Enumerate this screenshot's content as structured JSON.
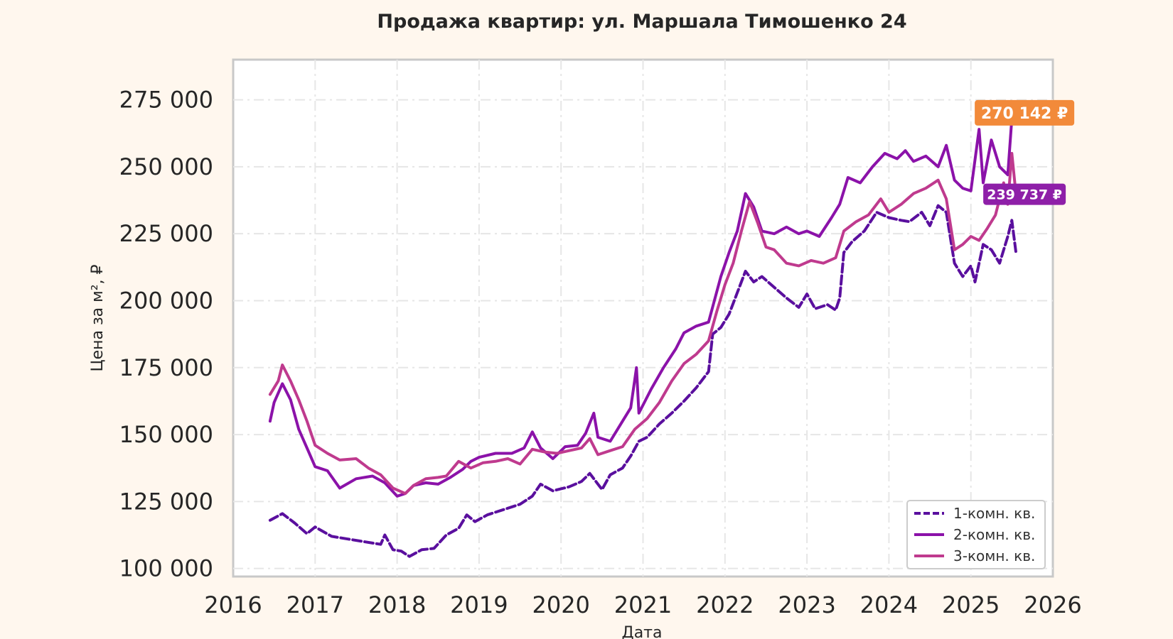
{
  "chart_data": {
    "type": "line",
    "title": "Продажа квартир: ул. Маршала Тимошенко 24",
    "xlabel": "Дата",
    "ylabel": "Цена за м², ₽",
    "xlim": [
      2016,
      2026
    ],
    "ylim": [
      97000,
      290000
    ],
    "x_ticks": [
      2016,
      2017,
      2018,
      2019,
      2020,
      2021,
      2022,
      2023,
      2024,
      2025,
      2026
    ],
    "x_tick_labels": [
      "2016",
      "2017",
      "2018",
      "2019",
      "2020",
      "2021",
      "2022",
      "2023",
      "2024",
      "2025",
      "2026"
    ],
    "y_ticks": [
      100000,
      125000,
      150000,
      175000,
      200000,
      225000,
      250000,
      275000
    ],
    "y_tick_labels": [
      "100 000",
      "125 000",
      "150 000",
      "175 000",
      "200 000",
      "225 000",
      "250 000",
      "275 000"
    ],
    "grid": true,
    "legend_position": "bottom-right",
    "series": [
      {
        "name": "1-комн. кв.",
        "color": "#5a0f9e",
        "style": "dashed",
        "points": [
          [
            2016.45,
            118000
          ],
          [
            2016.6,
            120500
          ],
          [
            2016.75,
            117000
          ],
          [
            2016.9,
            113000
          ],
          [
            2017.0,
            115500
          ],
          [
            2017.2,
            112000
          ],
          [
            2017.4,
            111000
          ],
          [
            2017.6,
            110000
          ],
          [
            2017.8,
            109000
          ],
          [
            2017.85,
            112500
          ],
          [
            2017.95,
            107000
          ],
          [
            2018.05,
            106500
          ],
          [
            2018.15,
            104500
          ],
          [
            2018.3,
            107000
          ],
          [
            2018.45,
            107500
          ],
          [
            2018.6,
            112500
          ],
          [
            2018.75,
            115000
          ],
          [
            2018.85,
            120000
          ],
          [
            2018.95,
            117500
          ],
          [
            2019.1,
            120000
          ],
          [
            2019.3,
            122000
          ],
          [
            2019.5,
            124000
          ],
          [
            2019.65,
            127000
          ],
          [
            2019.75,
            131500
          ],
          [
            2019.9,
            129000
          ],
          [
            2020.1,
            130500
          ],
          [
            2020.25,
            132500
          ],
          [
            2020.35,
            135500
          ],
          [
            2020.45,
            131500
          ],
          [
            2020.5,
            129500
          ],
          [
            2020.6,
            135000
          ],
          [
            2020.75,
            137500
          ],
          [
            2020.85,
            142000
          ],
          [
            2020.95,
            147500
          ],
          [
            2021.05,
            149000
          ],
          [
            2021.2,
            154000
          ],
          [
            2021.35,
            158000
          ],
          [
            2021.5,
            162500
          ],
          [
            2021.65,
            167500
          ],
          [
            2021.8,
            173500
          ],
          [
            2021.85,
            187500
          ],
          [
            2021.95,
            190000
          ],
          [
            2022.05,
            195000
          ],
          [
            2022.15,
            203000
          ],
          [
            2022.25,
            211000
          ],
          [
            2022.35,
            207000
          ],
          [
            2022.45,
            209000
          ],
          [
            2022.6,
            205000
          ],
          [
            2022.75,
            201000
          ],
          [
            2022.9,
            197500
          ],
          [
            2023.0,
            202500
          ],
          [
            2023.1,
            197000
          ],
          [
            2023.25,
            198500
          ],
          [
            2023.35,
            196500
          ],
          [
            2023.4,
            201000
          ],
          [
            2023.45,
            218000
          ],
          [
            2023.55,
            222000
          ],
          [
            2023.7,
            226000
          ],
          [
            2023.85,
            233000
          ],
          [
            2024.0,
            231000
          ],
          [
            2024.15,
            230000
          ],
          [
            2024.25,
            229500
          ],
          [
            2024.4,
            233000
          ],
          [
            2024.5,
            228000
          ],
          [
            2024.6,
            235500
          ],
          [
            2024.7,
            233000
          ],
          [
            2024.8,
            214000
          ],
          [
            2024.9,
            209000
          ],
          [
            2025.0,
            213000
          ],
          [
            2025.05,
            207000
          ],
          [
            2025.15,
            221000
          ],
          [
            2025.25,
            219000
          ],
          [
            2025.35,
            214000
          ],
          [
            2025.45,
            224000
          ],
          [
            2025.5,
            230000
          ],
          [
            2025.55,
            218000
          ]
        ]
      },
      {
        "name": "2-комн. кв.",
        "color": "#8b12a9",
        "style": "solid",
        "points": [
          [
            2016.45,
            155000
          ],
          [
            2016.5,
            162000
          ],
          [
            2016.6,
            169000
          ],
          [
            2016.7,
            163000
          ],
          [
            2016.8,
            152000
          ],
          [
            2016.9,
            145000
          ],
          [
            2017.0,
            138000
          ],
          [
            2017.15,
            136500
          ],
          [
            2017.3,
            130000
          ],
          [
            2017.5,
            133500
          ],
          [
            2017.7,
            134500
          ],
          [
            2017.85,
            132000
          ],
          [
            2018.0,
            127000
          ],
          [
            2018.1,
            128000
          ],
          [
            2018.2,
            131000
          ],
          [
            2018.35,
            132000
          ],
          [
            2018.5,
            131500
          ],
          [
            2018.65,
            134000
          ],
          [
            2018.8,
            137000
          ],
          [
            2018.9,
            140000
          ],
          [
            2019.0,
            141500
          ],
          [
            2019.2,
            143000
          ],
          [
            2019.4,
            143000
          ],
          [
            2019.55,
            145000
          ],
          [
            2019.65,
            151000
          ],
          [
            2019.75,
            145000
          ],
          [
            2019.9,
            141000
          ],
          [
            2020.05,
            145500
          ],
          [
            2020.2,
            146000
          ],
          [
            2020.3,
            150500
          ],
          [
            2020.4,
            158000
          ],
          [
            2020.45,
            149000
          ],
          [
            2020.6,
            147500
          ],
          [
            2020.75,
            155000
          ],
          [
            2020.85,
            160000
          ],
          [
            2020.92,
            175000
          ],
          [
            2020.95,
            158000
          ],
          [
            2021.1,
            167000
          ],
          [
            2021.25,
            175000
          ],
          [
            2021.4,
            182000
          ],
          [
            2021.5,
            188000
          ],
          [
            2021.65,
            190500
          ],
          [
            2021.8,
            192000
          ],
          [
            2021.95,
            209000
          ],
          [
            2022.05,
            218000
          ],
          [
            2022.15,
            226000
          ],
          [
            2022.25,
            240000
          ],
          [
            2022.35,
            235000
          ],
          [
            2022.45,
            226000
          ],
          [
            2022.6,
            225000
          ],
          [
            2022.75,
            227500
          ],
          [
            2022.9,
            225000
          ],
          [
            2023.0,
            226000
          ],
          [
            2023.15,
            224000
          ],
          [
            2023.3,
            231000
          ],
          [
            2023.4,
            236000
          ],
          [
            2023.5,
            246000
          ],
          [
            2023.65,
            244000
          ],
          [
            2023.8,
            250000
          ],
          [
            2023.95,
            255000
          ],
          [
            2024.1,
            253000
          ],
          [
            2024.2,
            256000
          ],
          [
            2024.3,
            252000
          ],
          [
            2024.45,
            254000
          ],
          [
            2024.6,
            250000
          ],
          [
            2024.7,
            258000
          ],
          [
            2024.8,
            245000
          ],
          [
            2024.9,
            242000
          ],
          [
            2025.0,
            241000
          ],
          [
            2025.1,
            264000
          ],
          [
            2025.15,
            244000
          ],
          [
            2025.25,
            260000
          ],
          [
            2025.35,
            250000
          ],
          [
            2025.45,
            247000
          ],
          [
            2025.5,
            268000
          ],
          [
            2025.55,
            270142
          ]
        ]
      },
      {
        "name": "3-комн. кв.",
        "color": "#bf3a8e",
        "style": "solid",
        "points": [
          [
            2016.45,
            165000
          ],
          [
            2016.55,
            170000
          ],
          [
            2016.6,
            176000
          ],
          [
            2016.7,
            170000
          ],
          [
            2016.8,
            163000
          ],
          [
            2016.9,
            155000
          ],
          [
            2017.0,
            146000
          ],
          [
            2017.15,
            143000
          ],
          [
            2017.3,
            140500
          ],
          [
            2017.5,
            141000
          ],
          [
            2017.65,
            137500
          ],
          [
            2017.8,
            135000
          ],
          [
            2017.95,
            130000
          ],
          [
            2018.1,
            128000
          ],
          [
            2018.2,
            131000
          ],
          [
            2018.35,
            133500
          ],
          [
            2018.5,
            134000
          ],
          [
            2018.6,
            134500
          ],
          [
            2018.75,
            140000
          ],
          [
            2018.9,
            137500
          ],
          [
            2019.05,
            139500
          ],
          [
            2019.2,
            140000
          ],
          [
            2019.35,
            141000
          ],
          [
            2019.5,
            139000
          ],
          [
            2019.65,
            144500
          ],
          [
            2019.8,
            143500
          ],
          [
            2019.95,
            143000
          ],
          [
            2020.1,
            144000
          ],
          [
            2020.25,
            145000
          ],
          [
            2020.35,
            148500
          ],
          [
            2020.45,
            142500
          ],
          [
            2020.6,
            144000
          ],
          [
            2020.75,
            145500
          ],
          [
            2020.9,
            152000
          ],
          [
            2021.05,
            156000
          ],
          [
            2021.2,
            162000
          ],
          [
            2021.35,
            170000
          ],
          [
            2021.5,
            176500
          ],
          [
            2021.65,
            180000
          ],
          [
            2021.8,
            185000
          ],
          [
            2021.9,
            196000
          ],
          [
            2022.0,
            206000
          ],
          [
            2022.1,
            214000
          ],
          [
            2022.2,
            226000
          ],
          [
            2022.3,
            237000
          ],
          [
            2022.4,
            229000
          ],
          [
            2022.5,
            220000
          ],
          [
            2022.6,
            219000
          ],
          [
            2022.75,
            214000
          ],
          [
            2022.9,
            213000
          ],
          [
            2023.05,
            215000
          ],
          [
            2023.2,
            214000
          ],
          [
            2023.35,
            216000
          ],
          [
            2023.45,
            226000
          ],
          [
            2023.6,
            229500
          ],
          [
            2023.75,
            232000
          ],
          [
            2023.9,
            238000
          ],
          [
            2024.0,
            233000
          ],
          [
            2024.15,
            236000
          ],
          [
            2024.3,
            240000
          ],
          [
            2024.45,
            242000
          ],
          [
            2024.6,
            245000
          ],
          [
            2024.7,
            238000
          ],
          [
            2024.8,
            219000
          ],
          [
            2024.9,
            221000
          ],
          [
            2025.0,
            224000
          ],
          [
            2025.1,
            222500
          ],
          [
            2025.2,
            227000
          ],
          [
            2025.3,
            232000
          ],
          [
            2025.4,
            244000
          ],
          [
            2025.45,
            236000
          ],
          [
            2025.5,
            255000
          ],
          [
            2025.55,
            239737
          ]
        ]
      }
    ],
    "annotations": [
      {
        "text": "270 142 ₽",
        "x": 2025.55,
        "y": 270142,
        "color": "#f28a3a"
      },
      {
        "text": "239 737 ₽",
        "x": 2025.55,
        "y": 239737,
        "color": "#8e1fa8"
      }
    ]
  }
}
